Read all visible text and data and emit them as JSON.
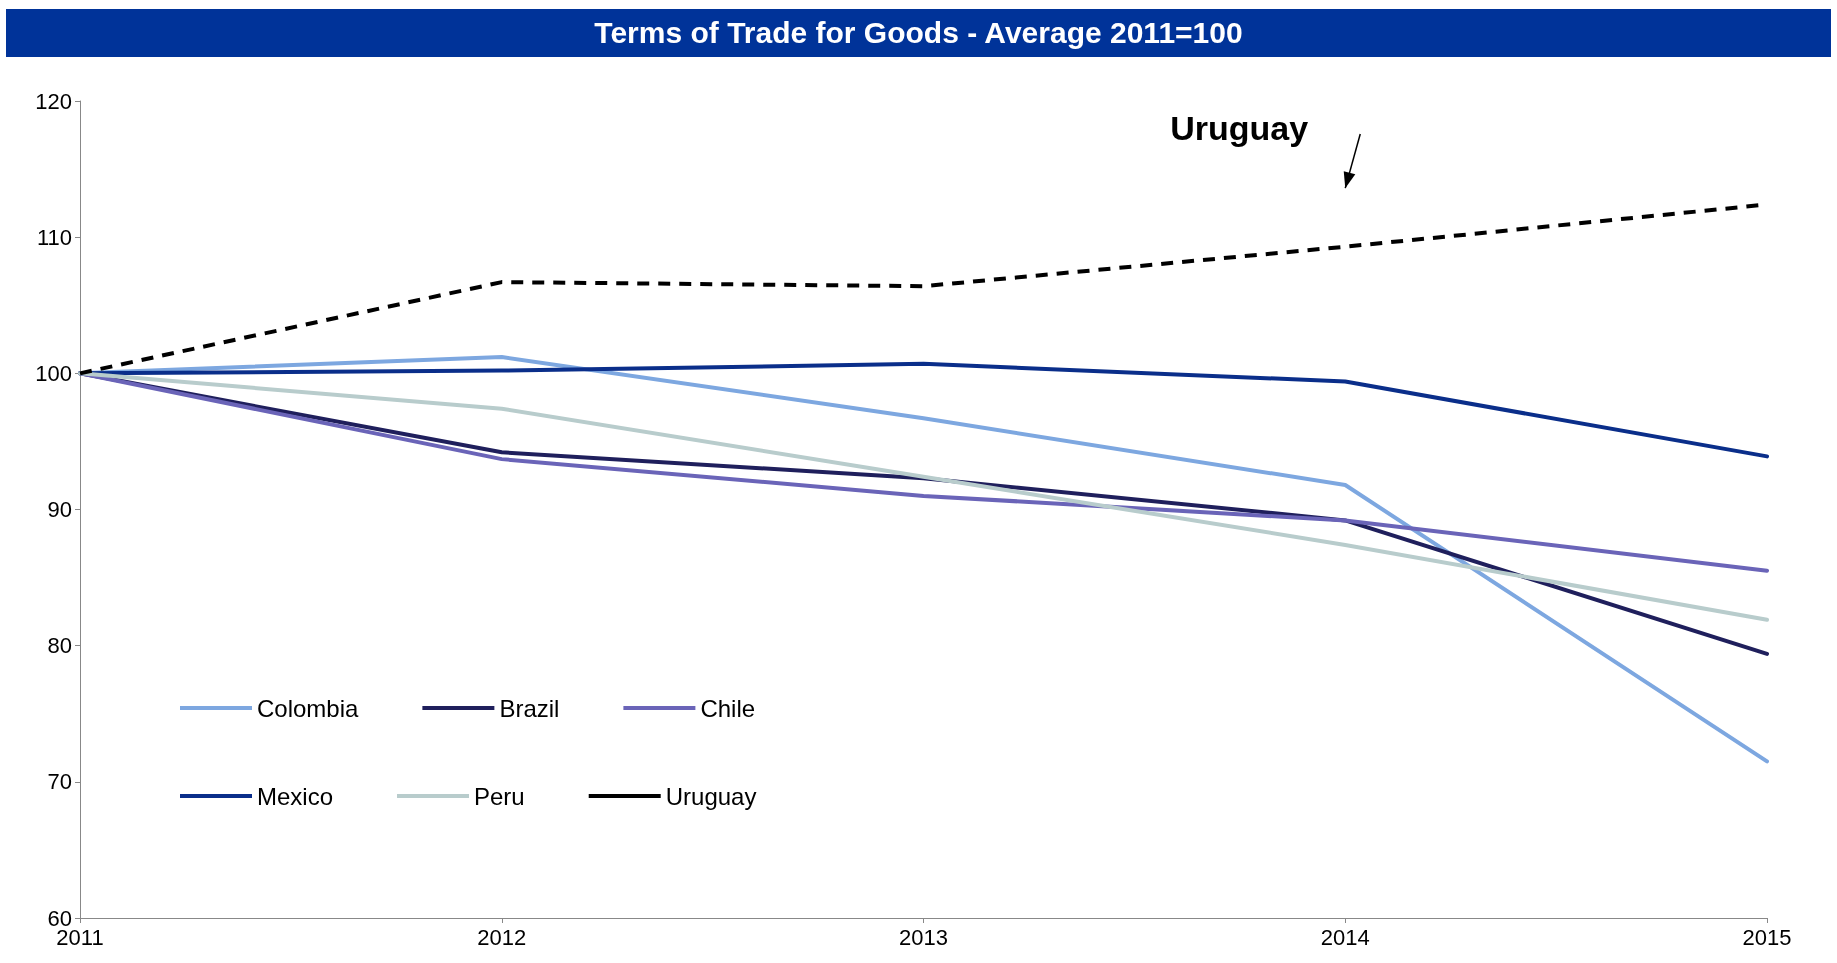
{
  "chart_data": {
    "type": "line",
    "title": "Terms of Trade for Goods - Average 2011=100",
    "categories": [
      "2011",
      "2012",
      "2013",
      "2014",
      "2015"
    ],
    "series": [
      {
        "name": "Colombia",
        "color": "#7da7e0",
        "values": [
          100,
          101.2,
          96.7,
          91.8,
          71.5
        ]
      },
      {
        "name": "Brazil",
        "color": "#1f1f5c",
        "values": [
          100,
          94.2,
          92.3,
          89.2,
          79.4
        ]
      },
      {
        "name": "Chile",
        "color": "#6a64b8",
        "values": [
          100,
          93.7,
          91.0,
          89.2,
          85.5
        ]
      },
      {
        "name": "Mexico",
        "color": "#0a2e8a",
        "values": [
          100,
          100.2,
          100.7,
          99.4,
          93.9
        ]
      },
      {
        "name": "Peru",
        "color": "#b8cccc",
        "values": [
          100,
          97.4,
          92.4,
          87.4,
          81.9
        ]
      },
      {
        "name": "Uruguay",
        "color": "#000000",
        "values": [
          100,
          106.7,
          106.4,
          109.3,
          112.4
        ],
        "line_style": "dashed"
      }
    ],
    "ylim": [
      60,
      120
    ],
    "yticks": [
      60,
      70,
      80,
      90,
      100,
      110,
      120
    ],
    "grid": false,
    "legend": "bottom left",
    "marker": "none",
    "line_style": "solid",
    "annotations": [
      "Uruguay"
    ]
  }
}
